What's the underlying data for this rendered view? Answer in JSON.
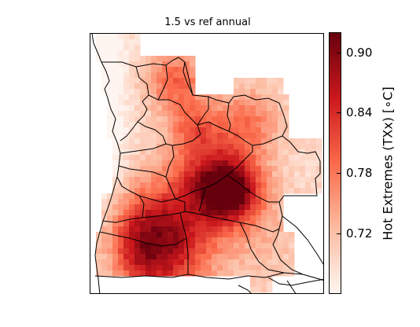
{
  "title": "1.5 vs ref annual",
  "colorbar": {
    "label": "Hot Extremes (TXx) [∘C]",
    "range": [
      0.66,
      0.92
    ],
    "ticks": [
      "0.90",
      "0.84",
      "0.78",
      "0.72"
    ],
    "tick_values": [
      0.9,
      0.84,
      0.78,
      0.72
    ],
    "colormap": "Reds",
    "colors": [
      "#fff5f0",
      "#fcbba1",
      "#fb6a4a",
      "#cb181d",
      "#67000d"
    ]
  },
  "map": {
    "region": "Angola",
    "projection": "lat-lon grid",
    "boundaries": "country and province borders in black",
    "grid_fields": {
      "strong_southwest": 0.91,
      "central_south": 0.85,
      "east_center": 0.84,
      "north": 0.81,
      "northeast": 0.8,
      "coast": 0.7,
      "southeast": 0.74
    }
  }
}
